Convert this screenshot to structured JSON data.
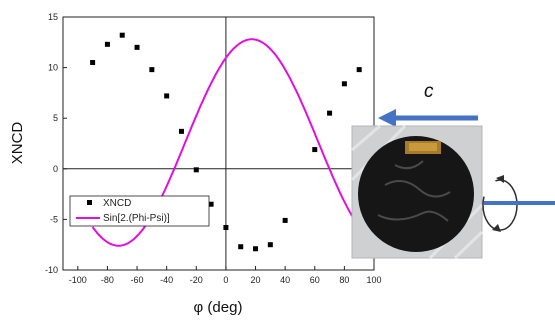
{
  "chart_data": {
    "type": "scatter",
    "xlabel": "φ (deg)",
    "ylabel": "XNCD",
    "xlim": [
      -110,
      100
    ],
    "ylim": [
      -10,
      15
    ],
    "xticks": [
      -100,
      -80,
      -60,
      -40,
      -20,
      0,
      20,
      40,
      60,
      80,
      100
    ],
    "yticks": [
      -10,
      -5,
      0,
      5,
      10,
      15
    ],
    "grid": false,
    "legend_position": "lower-left",
    "series": [
      {
        "name": "XNCD",
        "kind": "points",
        "color": "#000000",
        "x": [
          -90,
          -80,
          -70,
          -60,
          -50,
          -40,
          -30,
          -20,
          -10,
          0,
          10,
          20,
          30,
          40,
          60,
          70,
          80,
          90
        ],
        "y": [
          10.5,
          12.3,
          13.2,
          12.0,
          9.8,
          7.2,
          3.7,
          -0.1,
          -3.5,
          -5.8,
          -7.7,
          -7.9,
          -7.5,
          -5.1,
          1.9,
          5.5,
          8.4,
          9.8
        ]
      },
      {
        "name": "Sin[2.(Phi-Psi)]",
        "kind": "fit-line",
        "color": "#e011e0",
        "amplitude": 10.2,
        "offset": 2.6,
        "psi_deg": -27.5,
        "x_range": [
          -90,
          90
        ]
      }
    ]
  },
  "annotation": {
    "beam_label": "c",
    "arrow_color": "#4472c4",
    "photo_icon": "sample-disc-photo",
    "rotation_icon": "rotation-arrow-icon"
  }
}
